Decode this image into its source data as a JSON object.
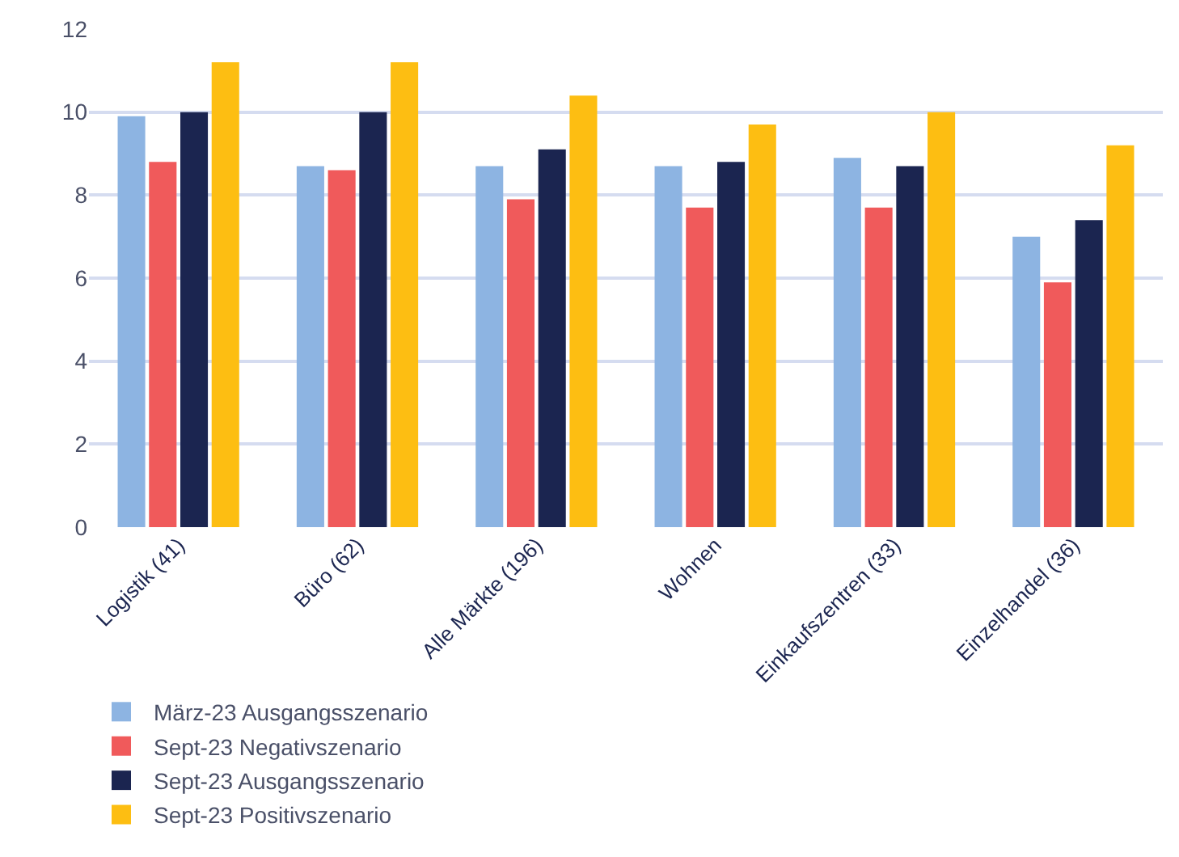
{
  "chart_data": {
    "type": "bar",
    "categories": [
      "Logistik (41)",
      "Büro (62)",
      "Alle Märkte (196)",
      "Wohnen",
      "Einkaufszentren (33)",
      "Einzelhandel (36)"
    ],
    "series": [
      {
        "name": "März-23 Ausgangsszenario",
        "color": "#8db4e2",
        "values": [
          9.9,
          8.7,
          8.7,
          8.7,
          8.9,
          7.0
        ]
      },
      {
        "name": "Sept-23 Negativszenario",
        "color": "#f05a5b",
        "values": [
          8.8,
          8.6,
          7.9,
          7.7,
          7.7,
          5.9
        ]
      },
      {
        "name": "Sept-23 Ausgangsszenario",
        "color": "#1b2550",
        "values": [
          10.0,
          10.0,
          9.1,
          8.8,
          8.7,
          7.4
        ]
      },
      {
        "name": "Sept-23 Positivszenario",
        "color": "#fdbe12",
        "values": [
          11.2,
          11.2,
          10.4,
          9.7,
          10.0,
          9.2
        ]
      }
    ],
    "ylim": [
      0,
      12
    ],
    "yticks": [
      0,
      2,
      4,
      6,
      8,
      10,
      12
    ],
    "grid": "y",
    "legend": "bottom"
  }
}
